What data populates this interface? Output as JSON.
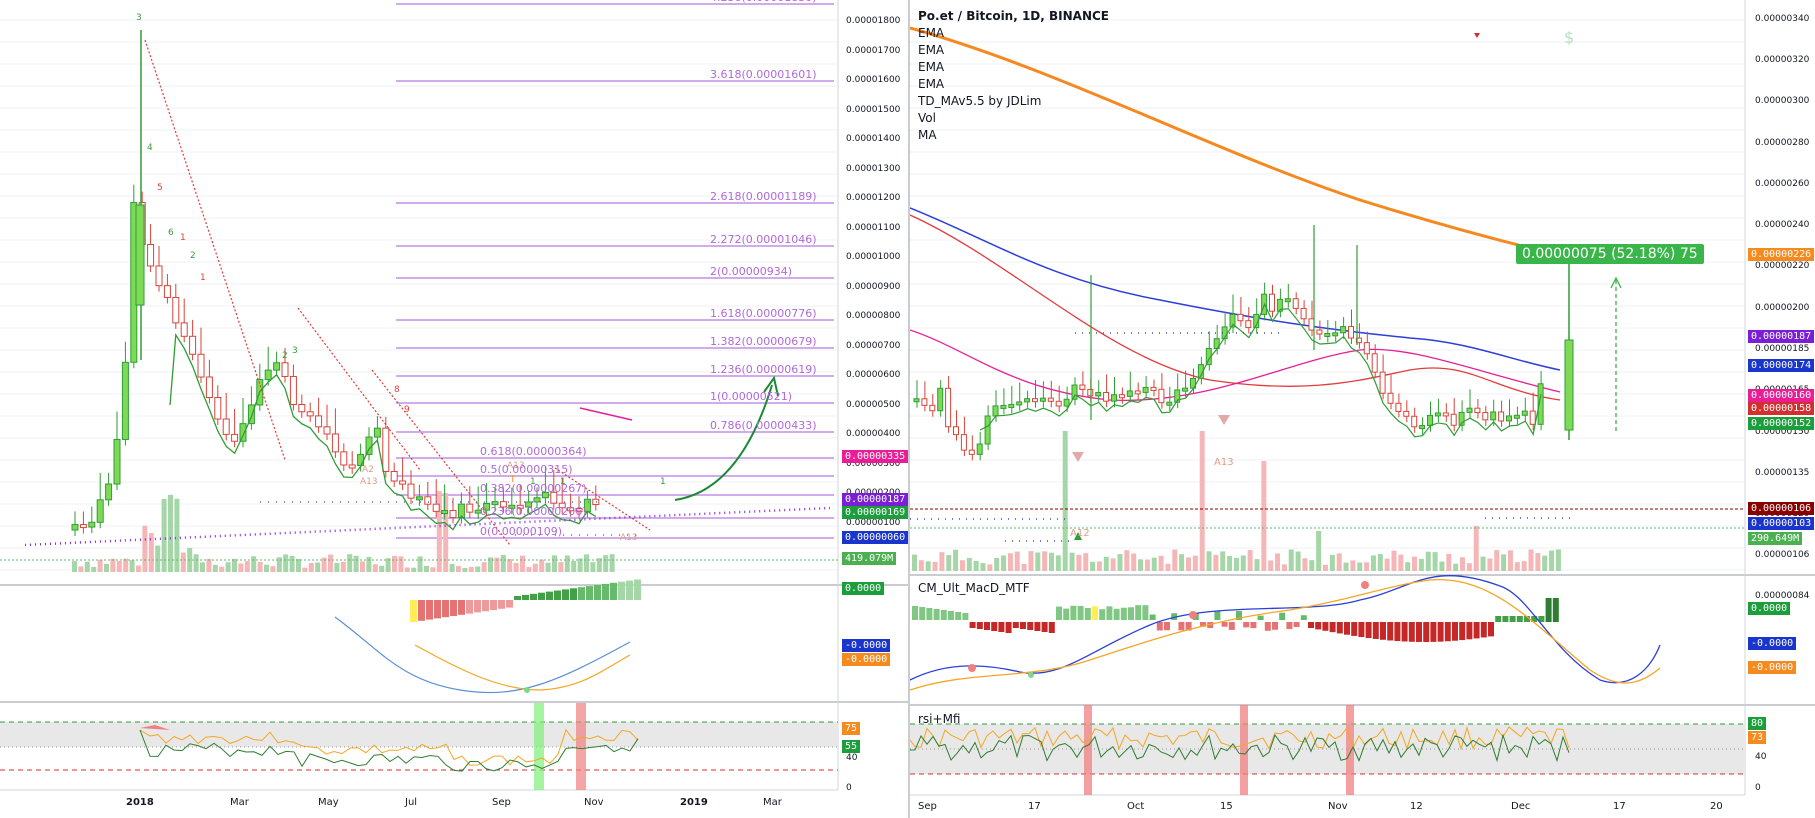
{
  "left": {
    "y_axis": [
      "0.00001800",
      "0.00001700",
      "0.00001600",
      "0.00001500",
      "0.00001400",
      "0.00001300",
      "0.00001200",
      "0.00001100",
      "0.00001000",
      "0.00000900",
      "0.00000800",
      "0.00000700",
      "0.00000600",
      "0.00000500",
      "0.00000400",
      "0.00000300",
      "0.00000200",
      "0.00000100"
    ],
    "x_axis": [
      "2018",
      "Mar",
      "May",
      "Jul",
      "Sep",
      "Nov",
      "2019",
      "Mar"
    ],
    "fib_levels": [
      "4.236(0.00001830)",
      "3.618(0.00001601)",
      "2.618(0.00001189)",
      "2.272(0.00001046)",
      "2(0.00000934)",
      "1.618(0.00000776)",
      "1.382(0.00000679)",
      "1.236(0.00000619)",
      "1(0.00000521)",
      "0.786(0.00000433)",
      "0.618(0.00000364)",
      "0.5(0.00000315)",
      "0.382(0.00000267)",
      "0.236(0.00000206)",
      "0(0.00000109)"
    ],
    "price_tags": [
      {
        "text": "0.00000335",
        "color": "#e91e97"
      },
      {
        "text": "0.00000187",
        "color": "#7b1fd6"
      },
      {
        "text": "0.00000169",
        "color": "#1b9e3b"
      },
      {
        "text": "0.00000060",
        "color": "#1a35cc"
      },
      {
        "text": "419.079M",
        "color": "#4caf50"
      }
    ],
    "macd_tags": [
      {
        "text": "0.0000",
        "color": "#1b9e3b"
      },
      {
        "text": "-0.0000",
        "color": "#1a35cc"
      },
      {
        "text": "-0.0000",
        "color": "#f58a1f"
      }
    ],
    "rsi_tags": [
      {
        "text": "75",
        "color": "#f58a1f"
      },
      {
        "text": "55",
        "color": "#1b9e3b"
      }
    ],
    "rsi_axis": [
      "40",
      "0"
    ],
    "markers": [
      "3",
      "4",
      "5",
      "6",
      "1",
      "2",
      "1",
      "2",
      "3",
      "8",
      "9",
      "A13",
      "A13",
      "A13",
      "A2",
      "T",
      "1",
      "1",
      "1"
    ]
  },
  "right": {
    "legend": {
      "title": "Po.et / Bitcoin, 1D, BINANCE",
      "items": [
        "EMA",
        "EMA",
        "EMA",
        "EMA",
        "TD_MAv5.5 by JDLim",
        "Vol",
        "MA"
      ]
    },
    "y_axis": [
      "0.00000340",
      "0.00000320",
      "0.00000300",
      "0.00000280",
      "0.00000260",
      "0.00000240",
      "0.00000220",
      "0.00000200",
      "0.00000185",
      "0.00000165",
      "0.00000150",
      "0.00000135",
      "0.00000120",
      "0.00000106",
      "0.00000084"
    ],
    "x_axis": [
      "Sep",
      "17",
      "Oct",
      "15",
      "Nov",
      "12",
      "Dec",
      "17",
      "20"
    ],
    "alert": "0.00000075 (52.18%) 75",
    "price_tags": [
      {
        "text": "0.00000226",
        "color": "#f58a1f"
      },
      {
        "text": "0.00000187",
        "color": "#7b1fd6"
      },
      {
        "text": "0.00000174",
        "color": "#1a35cc"
      },
      {
        "text": "0.00000160",
        "color": "#e91e97"
      },
      {
        "text": "0.00000158",
        "color": "#d32f2f"
      },
      {
        "text": "0.00000152",
        "color": "#1b9e3b"
      },
      {
        "text": "0.00000106",
        "color": "#8b0000"
      },
      {
        "text": "0.00000103",
        "color": "#1a35cc"
      },
      {
        "text": "290.649M",
        "color": "#4caf50"
      }
    ],
    "macd_label": "CM_Ult_MacD_MTF",
    "macd_tags": [
      {
        "text": "0.0000",
        "color": "#1b9e3b"
      },
      {
        "text": "-0.0000",
        "color": "#1a35cc"
      },
      {
        "text": "-0.0000",
        "color": "#f58a1f"
      }
    ],
    "rsi_label": "rsi+Mfi",
    "rsi_tags": [
      {
        "text": "80",
        "color": "#1b9e3b"
      },
      {
        "text": "73",
        "color": "#f58a1f"
      }
    ],
    "rsi_axis": [
      "40",
      "0"
    ],
    "marker_a13": "A13",
    "marker_a12": "A12",
    "dollar": "$"
  }
}
